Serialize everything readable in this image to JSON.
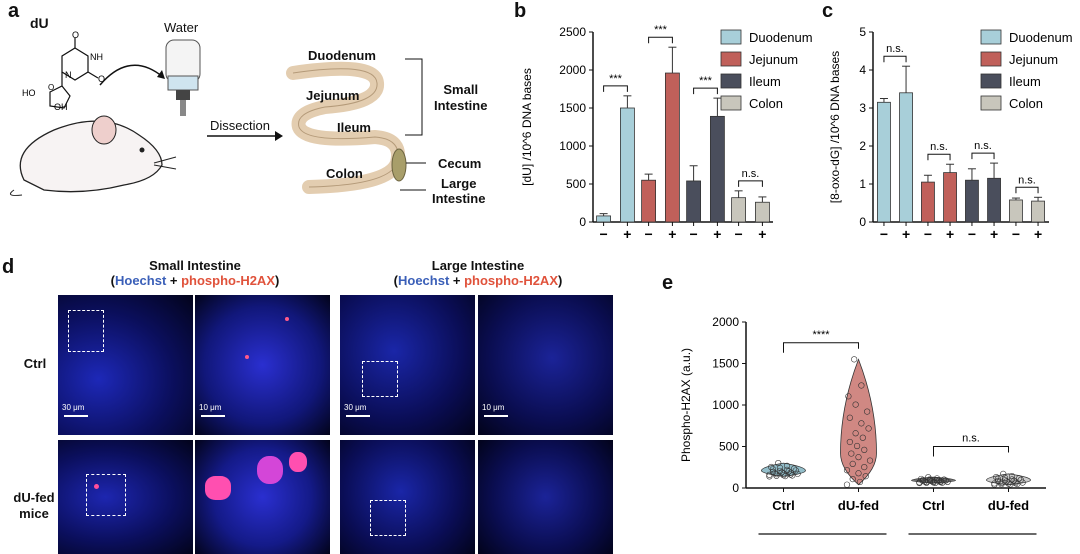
{
  "panels": {
    "a": "a",
    "b": "b",
    "c": "c",
    "d": "d",
    "e": "e"
  },
  "panel_a": {
    "compound": "dU",
    "chem_labels": [
      "O",
      "NH",
      "N",
      "O",
      "HO",
      "OH",
      "O"
    ],
    "water": "Water",
    "arrow_label": "Dissection",
    "gut": {
      "duodenum": "Duodenum",
      "jejunum": "Jejunum",
      "ileum": "Ileum",
      "colon": "Colon",
      "small_intestine": "Small\nIntestine",
      "cecum": "Cecum",
      "large_intestine": "Large\nIntestine"
    }
  },
  "panel_d": {
    "small_title": "Small Intestine",
    "large_title": "Large Intestine",
    "paren_open": "(",
    "paren_close": ")",
    "plus": " + ",
    "stain1": "Hoechst",
    "stain2": "phospho-H2AX",
    "stain1_color": "#3a5fb8",
    "stain2_color": "#e0523b",
    "row1": "Ctrl",
    "row2": "dU-fed\nmice",
    "scale_large": "30 μm",
    "scale_small": "10 μm"
  },
  "chart_data": [
    {
      "id": "b",
      "type": "bar",
      "ylabel": "[dU] /10^6 DNA bases",
      "ylim": [
        0,
        2500
      ],
      "yticks": [
        0,
        500,
        1000,
        1500,
        2000,
        2500
      ],
      "groups": [
        {
          "name": "Duodenum",
          "color": "#a8cfd9",
          "values": [
            80,
            1500
          ],
          "errors": [
            30,
            160
          ],
          "sig": "***"
        },
        {
          "name": "Jejunum",
          "color": "#c0605a",
          "values": [
            550,
            1960
          ],
          "errors": [
            80,
            340
          ],
          "sig": "***"
        },
        {
          "name": "Ileum",
          "color": "#4a4e5c",
          "values": [
            540,
            1390
          ],
          "errors": [
            200,
            240
          ],
          "sig": "***"
        },
        {
          "name": "Colon",
          "color": "#c8c6bc",
          "values": [
            320,
            260
          ],
          "errors": [
            90,
            70
          ],
          "sig": "n.s."
        }
      ],
      "tick_labels": [
        "−",
        "+"
      ],
      "legend": [
        "Duodenum",
        "Jejunum",
        "Ileum",
        "Colon"
      ],
      "legend_position": "top-right"
    },
    {
      "id": "c",
      "type": "bar",
      "ylabel": "[8-oxo-dG] /10^6 DNA bases",
      "ylim": [
        0,
        5
      ],
      "yticks": [
        0,
        1,
        2,
        3,
        4,
        5
      ],
      "groups": [
        {
          "name": "Duodenum",
          "color": "#a8cfd9",
          "values": [
            3.15,
            3.4
          ],
          "errors": [
            0.1,
            0.7
          ],
          "sig": "n.s."
        },
        {
          "name": "Jejunum",
          "color": "#c0605a",
          "values": [
            1.05,
            1.3
          ],
          "errors": [
            0.18,
            0.22
          ],
          "sig": "n.s."
        },
        {
          "name": "Ileum",
          "color": "#4a4e5c",
          "values": [
            1.1,
            1.15
          ],
          "errors": [
            0.3,
            0.4
          ],
          "sig": "n.s."
        },
        {
          "name": "Colon",
          "color": "#c8c6bc",
          "values": [
            0.58,
            0.55
          ],
          "errors": [
            0.05,
            0.1
          ],
          "sig": "n.s."
        }
      ],
      "tick_labels": [
        "−",
        "+"
      ],
      "legend": [
        "Duodenum",
        "Jejunum",
        "Ileum",
        "Colon"
      ],
      "legend_position": "top-right"
    },
    {
      "id": "e",
      "type": "scatter",
      "ylabel": "Phospho-H2AX (a.u.)",
      "ylim": [
        0,
        2000
      ],
      "yticks": [
        0,
        500,
        1000,
        1500,
        2000
      ],
      "categories": [
        "Ctrl",
        "dU-fed",
        "Ctrl",
        "dU-fed"
      ],
      "series": [
        {
          "name": "Ctrl",
          "color": "#6fa8b8",
          "median": 210,
          "min": 140,
          "max": 300
        },
        {
          "name": "dU-fed",
          "color": "#c0605a",
          "median": 420,
          "min": 40,
          "max": 1550
        },
        {
          "name": "Ctrl",
          "color": "#444444",
          "median": 90,
          "min": 60,
          "max": 130
        },
        {
          "name": "dU-fed",
          "color": "#bbbbbb",
          "median": 95,
          "min": 40,
          "max": 170
        }
      ],
      "comparisons": [
        {
          "from": 0,
          "to": 1,
          "label": "****"
        },
        {
          "from": 2,
          "to": 3,
          "label": "n.s."
        }
      ]
    }
  ]
}
